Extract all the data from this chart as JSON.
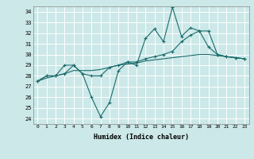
{
  "xlabel": "Humidex (Indice chaleur)",
  "bg_color": "#cce8e8",
  "line_color": "#1a6b6b",
  "grid_color": "#ffffff",
  "xlim": [
    -0.5,
    23.5
  ],
  "ylim": [
    23.5,
    34.5
  ],
  "yticks": [
    24,
    25,
    26,
    27,
    28,
    29,
    30,
    31,
    32,
    33,
    34
  ],
  "xticks": [
    0,
    1,
    2,
    3,
    4,
    5,
    6,
    7,
    8,
    9,
    10,
    11,
    12,
    13,
    14,
    15,
    16,
    17,
    18,
    19,
    20,
    21,
    22,
    23
  ],
  "series1": [
    27.5,
    28.0,
    28.0,
    29.0,
    29.0,
    28.2,
    26.0,
    24.2,
    25.5,
    28.5,
    29.3,
    29.0,
    31.5,
    32.4,
    31.2,
    34.4,
    31.7,
    32.5,
    32.2,
    30.7,
    30.0,
    29.8,
    29.7,
    29.6
  ],
  "series2": [
    27.5,
    28.0,
    28.0,
    28.2,
    29.0,
    28.2,
    28.0,
    28.0,
    28.8,
    29.0,
    29.3,
    29.3,
    29.6,
    29.8,
    30.0,
    30.3,
    31.2,
    31.8,
    32.2,
    32.2,
    30.0,
    29.8,
    29.7,
    29.6
  ],
  "series3": [
    27.5,
    27.8,
    28.0,
    28.2,
    28.5,
    28.5,
    28.5,
    28.6,
    28.8,
    29.0,
    29.1,
    29.2,
    29.4,
    29.5,
    29.6,
    29.7,
    29.8,
    29.9,
    30.0,
    30.0,
    29.9,
    29.8,
    29.7,
    29.6
  ]
}
